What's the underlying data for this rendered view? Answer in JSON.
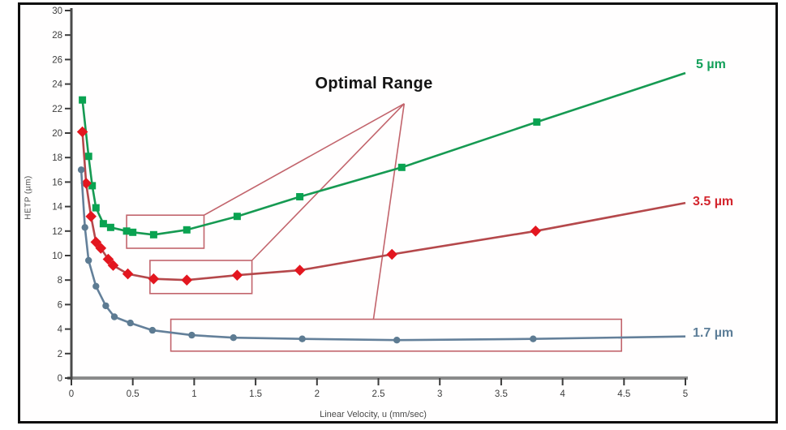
{
  "chart_data": {
    "type": "line",
    "xlabel": "Linear Velocity, u (mm/sec)",
    "ylabel": "HETP (µm)",
    "xlim": [
      0,
      5
    ],
    "ylim": [
      0,
      30
    ],
    "xticks": [
      "0",
      "0.5",
      "1",
      "1.5",
      "2",
      "2.5",
      "3",
      "3.5",
      "4",
      "4.5",
      "5"
    ],
    "yticks": [
      "0",
      "2",
      "4",
      "6",
      "8",
      "10",
      "12",
      "14",
      "16",
      "18",
      "20",
      "22",
      "24",
      "26",
      "28",
      "30"
    ],
    "grid": false,
    "legend_position": "labels at right ends of lines",
    "series": [
      {
        "name": "5 µm",
        "marker": "square",
        "line_color": "#169a52",
        "marker_color": "#0aa351",
        "marker_at_end": false,
        "points": [
          [
            0.09,
            22.7
          ],
          [
            0.14,
            18.1
          ],
          [
            0.17,
            15.7
          ],
          [
            0.2,
            13.9
          ],
          [
            0.26,
            12.6
          ],
          [
            0.32,
            12.3
          ],
          [
            0.45,
            12.0
          ],
          [
            0.5,
            11.9
          ],
          [
            0.67,
            11.7
          ],
          [
            0.94,
            12.1
          ],
          [
            1.35,
            13.2
          ],
          [
            1.86,
            14.8
          ],
          [
            2.69,
            17.2
          ],
          [
            3.79,
            20.9
          ],
          [
            5.0,
            24.9
          ]
        ]
      },
      {
        "name": "3.5 µm",
        "marker": "diamond",
        "line_color": "#b5484b",
        "marker_color": "#e3161f",
        "marker_at_end": false,
        "points": [
          [
            0.09,
            20.1
          ],
          [
            0.12,
            15.9
          ],
          [
            0.16,
            13.2
          ],
          [
            0.2,
            11.1
          ],
          [
            0.24,
            10.6
          ],
          [
            0.3,
            9.7
          ],
          [
            0.34,
            9.2
          ],
          [
            0.46,
            8.5
          ],
          [
            0.67,
            8.1
          ],
          [
            0.94,
            8.0
          ],
          [
            1.35,
            8.4
          ],
          [
            1.86,
            8.8
          ],
          [
            2.61,
            10.1
          ],
          [
            3.78,
            12.0
          ],
          [
            5.0,
            14.3
          ]
        ]
      },
      {
        "name": "1.7 µm",
        "marker": "circle",
        "line_color": "#64809a",
        "marker_color": "#5d7b92",
        "marker_at_end": false,
        "points": [
          [
            0.08,
            17.0
          ],
          [
            0.11,
            12.3
          ],
          [
            0.14,
            9.6
          ],
          [
            0.2,
            7.5
          ],
          [
            0.28,
            5.9
          ],
          [
            0.35,
            5.0
          ],
          [
            0.48,
            4.5
          ],
          [
            0.66,
            3.9
          ],
          [
            0.98,
            3.5
          ],
          [
            1.32,
            3.3
          ],
          [
            1.88,
            3.2
          ],
          [
            2.65,
            3.1
          ],
          [
            3.76,
            3.2
          ],
          [
            5.0,
            3.4
          ]
        ]
      }
    ],
    "annotations": {
      "label": "Optimal Range",
      "color": "#c2646c",
      "apex": [
        2.71,
        22.4
      ],
      "boxes": [
        {
          "x1": 0.45,
          "y1": 10.6,
          "x2": 1.08,
          "y2": 13.3
        },
        {
          "x1": 0.64,
          "y1": 6.9,
          "x2": 1.47,
          "y2": 9.6
        },
        {
          "x1": 0.81,
          "y1": 2.2,
          "x2": 4.48,
          "y2": 4.8
        }
      ],
      "line_targets": [
        [
          1.08,
          13.3
        ],
        [
          1.47,
          9.6
        ],
        [
          2.46,
          4.8
        ]
      ]
    }
  },
  "labels": {
    "optimal_range": "Optimal Range",
    "series_5um": "5 µm",
    "series_35um": "3.5 µm",
    "series_17um": "1.7 µm",
    "x_axis": "Linear Velocity, u (mm/sec)",
    "y_axis": "HETP (µm)"
  }
}
